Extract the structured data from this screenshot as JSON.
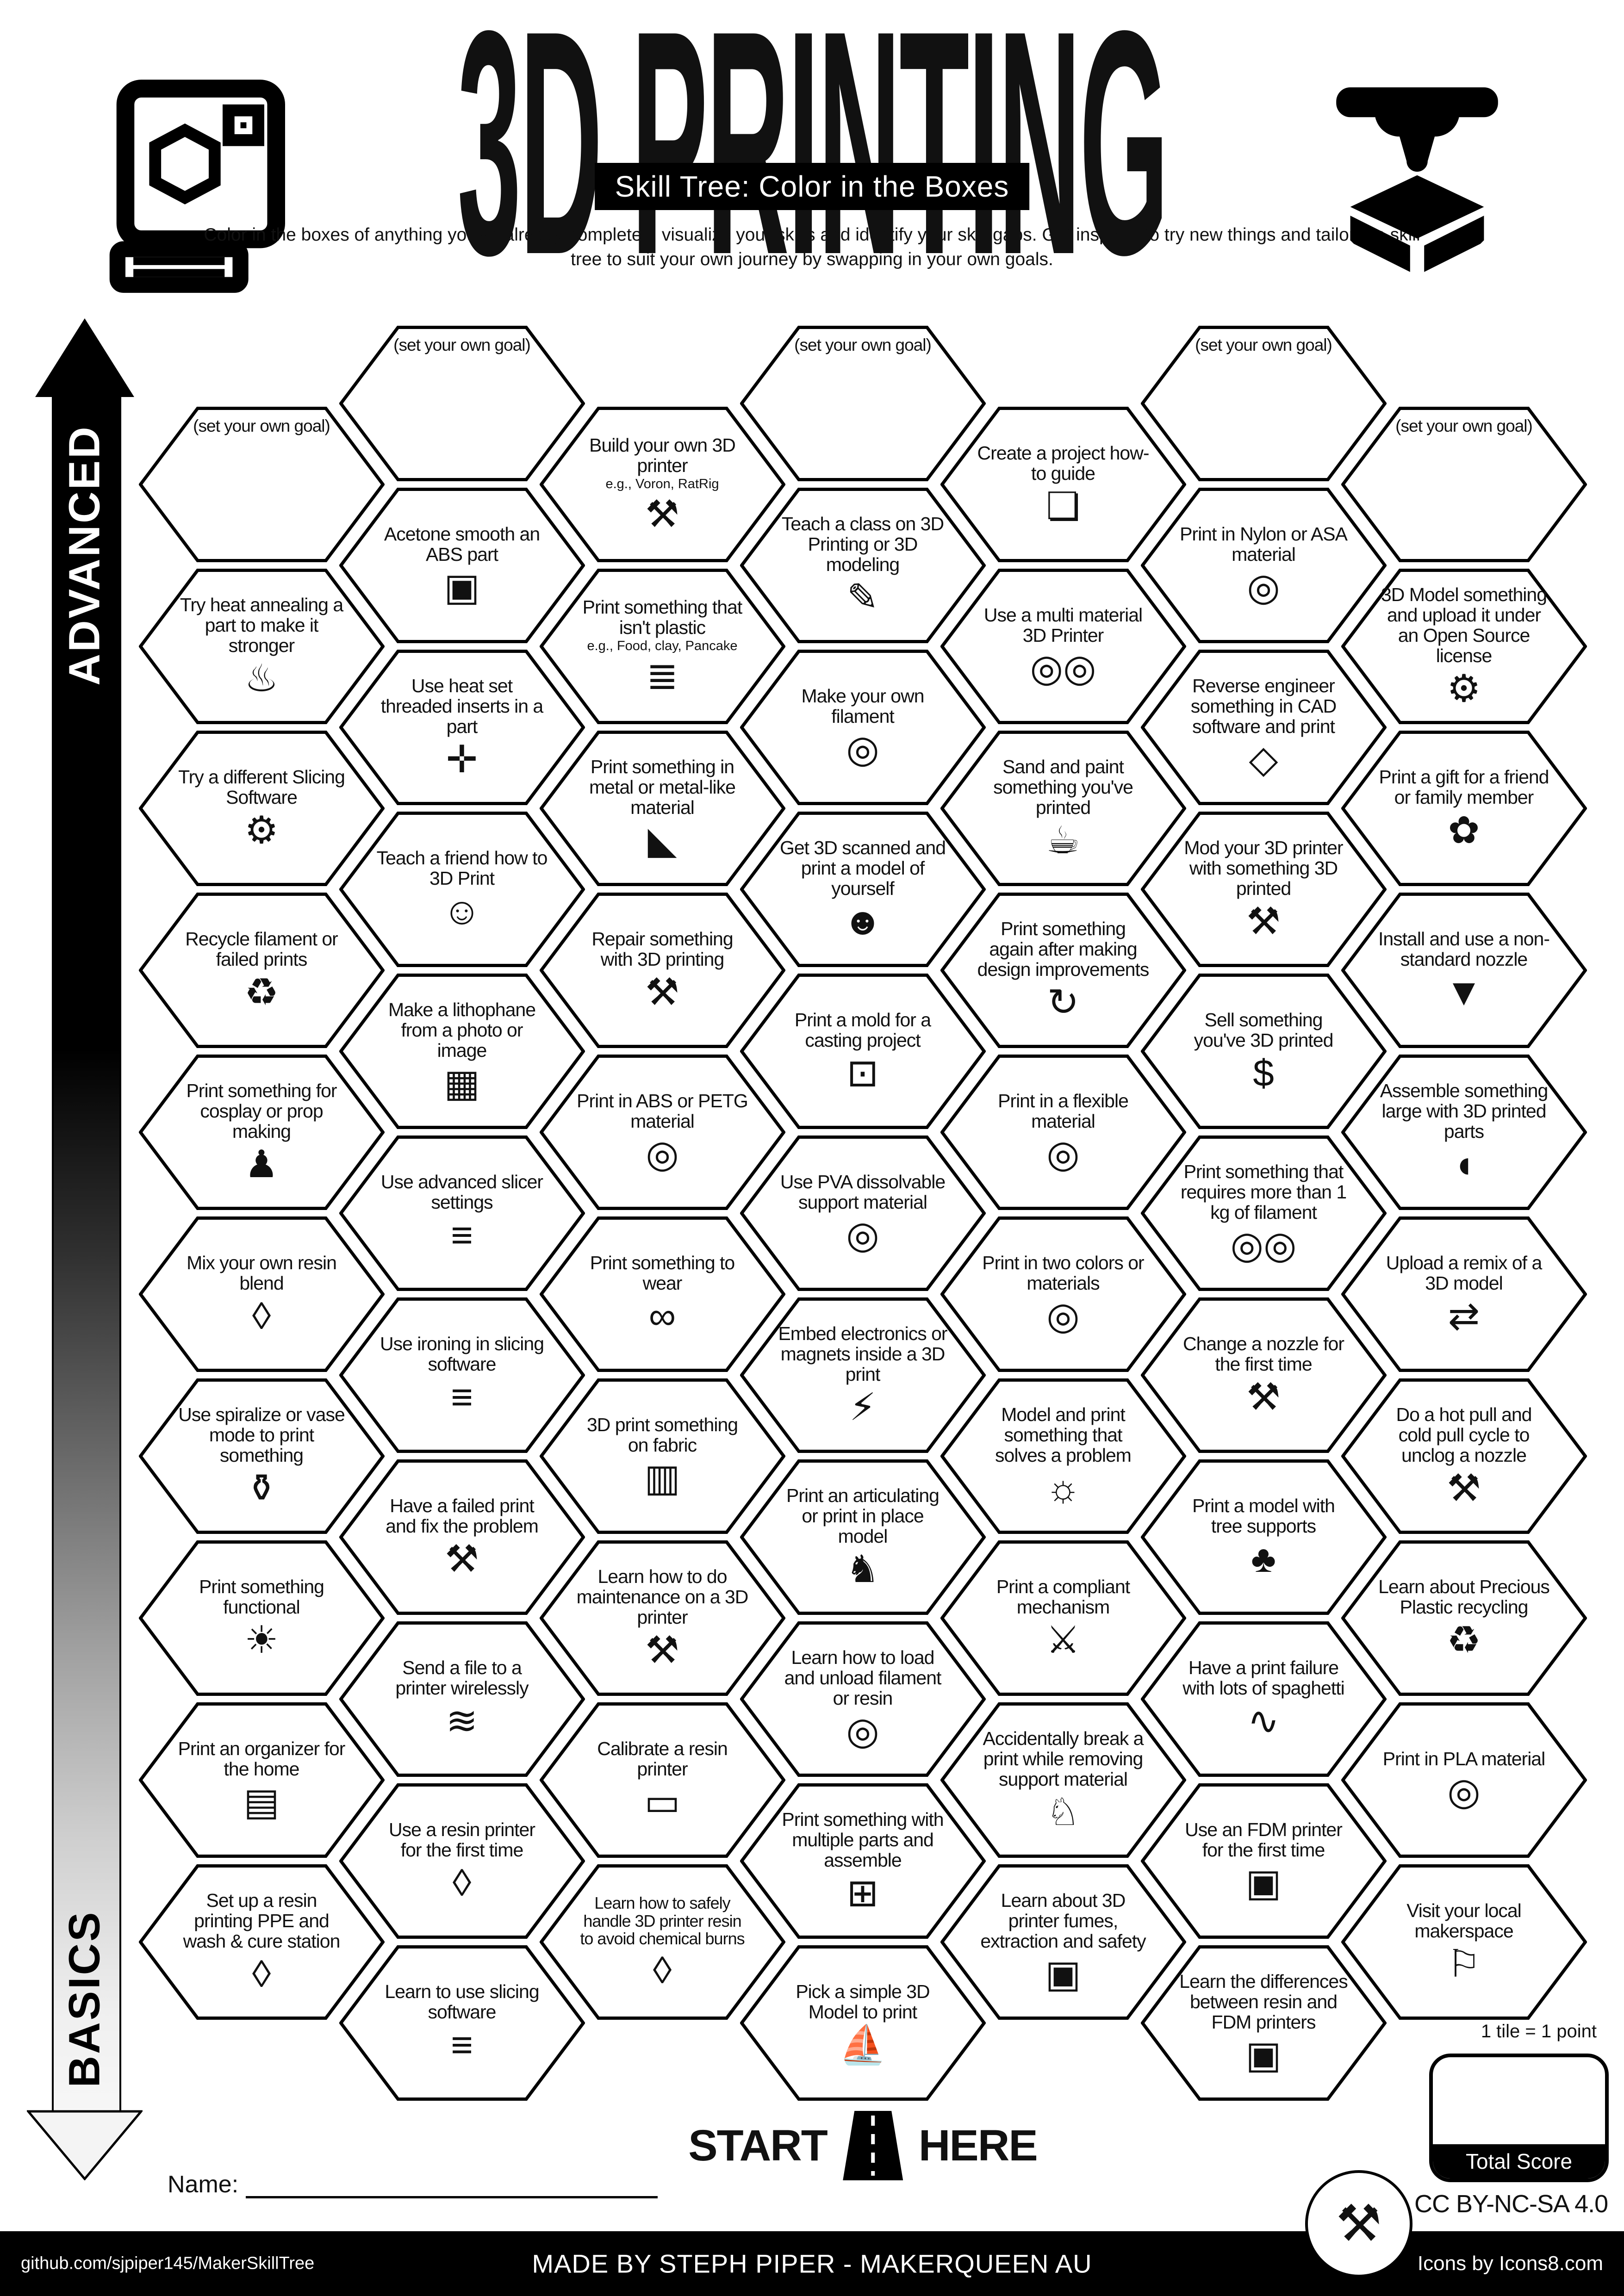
{
  "header": {
    "title": "3D PRINTING",
    "subtitle": "Skill Tree: Color in the Boxes",
    "description": "Color in the boxes of anything you've already completed, visualize your skills and identify your skill gaps.  Get inspired to try new things and tailor the skill tree to suit your own journey by swapping in your own goals."
  },
  "axis": {
    "top_label": "ADVANCED",
    "bottom_label": "BASICS"
  },
  "start_here": {
    "left": "START",
    "right": "HERE"
  },
  "name_label": "Name:",
  "score": {
    "note": "1 tile = 1 point",
    "label": "Total Score"
  },
  "license": "CC BY-NC-SA 4.0",
  "footer": {
    "github": "github.com/sjpiper145/MakerSkillTree",
    "made_by": "MADE BY STEPH PIPER  -  MAKERQUEEN AU",
    "icons_credit": "Icons by Icons8.com"
  },
  "icon_glyphs": {
    "tools-icon": "⚒",
    "filament-spool-icon": "◎",
    "two-spools-icon": "◎◎",
    "thermometer-up-icon": "♨",
    "acetone-box-icon": "▣",
    "threaded-insert-icon": "✛",
    "slicer-layers-icon": "≡",
    "laptop-gear-icon": "⚙",
    "teach-friend-icon": "☺",
    "teach-class-icon": "✎",
    "lithophane-icon": "▦",
    "mannequin-icon": "♟",
    "resin-drop-icon": "◊",
    "vase-icon": "⚱",
    "desk-lamp-icon": "☀",
    "wifi-icon": "≋",
    "organizer-icon": "▤",
    "ruler-icon": "▭",
    "train-icon": "⊞",
    "elephant-icon": "♘",
    "benchy-boat-icon": "⛵",
    "gift-bow-icon": "✿",
    "nozzle-icon": "▼",
    "money-bag-icon": "$",
    "whale-icon": "◖",
    "remix-arrows-icon": "⇄",
    "tree-icon": "♣",
    "recycle-icon": "♻",
    "lightbulb-icon": "☼",
    "compliant-mechanism-icon": "⚔",
    "spaghetti-bowl-icon": "∿",
    "led-icon": "⚡",
    "dragon-icon": "♞",
    "glasses-icon": "∞",
    "fabric-icon": "▥",
    "fdm-printer-icon": "▣",
    "location-pin-icon": "⚐",
    "mold-icon": "⊡",
    "scan-person-icon": "☻",
    "paint-bucket-icon": "☕",
    "redo-circle-icon": "↻",
    "cad-cube-icon": "◇",
    "open-source-gear-icon": "⚙",
    "doc-guide-icon": "❏",
    "anvil-icon": "◣",
    "pancake-stack-icon": "≣",
    "maker-badge-icon": "⚒"
  },
  "skill_tree": {
    "hexes": [
      {
        "id": "goal-1",
        "col": 1,
        "row": 0,
        "label": "(set your own goal)",
        "goal": true
      },
      {
        "id": "heat-annealing",
        "col": 1,
        "row": 1,
        "label": "Try heat annealing a part to make it stronger",
        "icon": "thermometer-up-icon"
      },
      {
        "id": "different-slicer",
        "col": 1,
        "row": 2,
        "label": "Try a different Slicing Software",
        "icon": "laptop-gear-icon"
      },
      {
        "id": "recycle-filament",
        "col": 1,
        "row": 3,
        "label": "Recycle filament or failed prints",
        "icon": "recycle-icon"
      },
      {
        "id": "cosplay",
        "col": 1,
        "row": 4,
        "label": "Print something for cosplay or prop making",
        "icon": "mannequin-icon"
      },
      {
        "id": "mix-resin",
        "col": 1,
        "row": 5,
        "label": "Mix your own resin blend",
        "icon": "resin-drop-icon"
      },
      {
        "id": "spiralize",
        "col": 1,
        "row": 6,
        "label": "Use spiralize or vase mode to print something",
        "icon": "vase-icon"
      },
      {
        "id": "functional",
        "col": 1,
        "row": 7,
        "label": "Print something functional",
        "icon": "desk-lamp-icon"
      },
      {
        "id": "organizer",
        "col": 1,
        "row": 8,
        "label": "Print an organizer for the home",
        "icon": "organizer-icon"
      },
      {
        "id": "resin-ppe",
        "col": 1,
        "row": 9,
        "label": "Set up a resin printing PPE and wash & cure station",
        "icon": "resin-drop-icon"
      },
      {
        "id": "goal-2",
        "col": 2,
        "row": 0,
        "label": "(set your own goal)",
        "goal": true
      },
      {
        "id": "acetone-smooth",
        "col": 2,
        "row": 1,
        "label": "Acetone smooth an ABS part",
        "icon": "acetone-box-icon"
      },
      {
        "id": "heat-set-inserts",
        "col": 2,
        "row": 2,
        "label": "Use heat set threaded inserts in a part",
        "icon": "threaded-insert-icon"
      },
      {
        "id": "teach-friend",
        "col": 2,
        "row": 3,
        "label": "Teach a friend how to 3D Print",
        "icon": "teach-friend-icon"
      },
      {
        "id": "lithophane",
        "col": 2,
        "row": 4,
        "label": "Make a lithophane from a photo or image",
        "icon": "lithophane-icon"
      },
      {
        "id": "advanced-slicer",
        "col": 2,
        "row": 5,
        "label": "Use advanced slicer settings",
        "icon": "slicer-layers-icon"
      },
      {
        "id": "ironing",
        "col": 2,
        "row": 6,
        "label": "Use ironing in slicing software",
        "icon": "slicer-layers-icon"
      },
      {
        "id": "failed-print-fix",
        "col": 2,
        "row": 7,
        "label": "Have a failed print and fix the problem",
        "icon": "tools-icon"
      },
      {
        "id": "send-wireless",
        "col": 2,
        "row": 8,
        "label": "Send a file to a printer wirelessly",
        "icon": "wifi-icon"
      },
      {
        "id": "resin-first-time",
        "col": 2,
        "row": 9,
        "label": "Use a resin printer for the first time",
        "icon": "resin-drop-icon"
      },
      {
        "id": "learn-slicing",
        "col": 2,
        "row": 10,
        "label": "Learn to use slicing software",
        "icon": "slicer-layers-icon"
      },
      {
        "id": "build-printer",
        "col": 3,
        "row": 0,
        "label": "Build your own 3D printer",
        "sub": "e.g., Voron, RatRig",
        "icon": "tools-icon"
      },
      {
        "id": "not-plastic",
        "col": 3,
        "row": 1,
        "label": "Print something that isn't plastic",
        "sub": "e.g., Food, clay, Pancake",
        "icon": "pancake-stack-icon"
      },
      {
        "id": "metal-print",
        "col": 3,
        "row": 2,
        "label": "Print something in metal or metal-like material",
        "icon": "anvil-icon"
      },
      {
        "id": "repair",
        "col": 3,
        "row": 3,
        "label": "Repair something with 3D printing",
        "icon": "tools-icon"
      },
      {
        "id": "abs-petg",
        "col": 3,
        "row": 4,
        "label": "Print in ABS or PETG material",
        "icon": "filament-spool-icon"
      },
      {
        "id": "wearable",
        "col": 3,
        "row": 5,
        "label": "Print something to wear",
        "icon": "glasses-icon"
      },
      {
        "id": "on-fabric",
        "col": 3,
        "row": 6,
        "label": "3D print something on fabric",
        "icon": "fabric-icon"
      },
      {
        "id": "maintenance",
        "col": 3,
        "row": 7,
        "label": "Learn how to do maintenance on a 3D printer",
        "icon": "tools-icon"
      },
      {
        "id": "calibrate-resin",
        "col": 3,
        "row": 8,
        "label": "Calibrate a resin printer",
        "icon": "ruler-icon"
      },
      {
        "id": "resin-safety",
        "col": 3,
        "row": 9,
        "label": "Learn how to safely handle 3D printer resin to avoid chemical burns",
        "icon": "resin-drop-icon"
      },
      {
        "id": "goal-4",
        "col": 4,
        "row": 0,
        "label": "(set your own goal)",
        "goal": true
      },
      {
        "id": "teach-class",
        "col": 4,
        "row": 1,
        "label": "Teach a class on 3D Printing or 3D modeling",
        "icon": "teach-class-icon"
      },
      {
        "id": "make-filament",
        "col": 4,
        "row": 2,
        "label": "Make your own filament",
        "icon": "filament-spool-icon"
      },
      {
        "id": "scan-yourself",
        "col": 4,
        "row": 3,
        "label": "Get 3D scanned and print a model of yourself",
        "icon": "scan-person-icon"
      },
      {
        "id": "casting-mold",
        "col": 4,
        "row": 4,
        "label": "Print a mold for a casting project",
        "icon": "mold-icon"
      },
      {
        "id": "pva-support",
        "col": 4,
        "row": 5,
        "label": "Use PVA dissolvable support material",
        "icon": "filament-spool-icon"
      },
      {
        "id": "embed-electronics",
        "col": 4,
        "row": 6,
        "label": "Embed electronics or magnets inside a 3D print",
        "icon": "led-icon"
      },
      {
        "id": "articulating",
        "col": 4,
        "row": 7,
        "label": "Print an articulating or print in place model",
        "icon": "dragon-icon"
      },
      {
        "id": "load-unload",
        "col": 4,
        "row": 8,
        "label": "Learn how to load and unload filament or resin",
        "icon": "filament-spool-icon"
      },
      {
        "id": "multi-part",
        "col": 4,
        "row": 9,
        "label": "Print something with multiple parts and assemble",
        "icon": "train-icon"
      },
      {
        "id": "simple-model",
        "col": 4,
        "row": 10,
        "label": "Pick a simple 3D Model to print",
        "icon": "benchy-boat-icon"
      },
      {
        "id": "howto-guide",
        "col": 5,
        "row": 0,
        "label": "Create a project how-to guide",
        "icon": "doc-guide-icon"
      },
      {
        "id": "multi-material",
        "col": 5,
        "row": 1,
        "label": "Use a multi material 3D Printer",
        "icon": "two-spools-icon"
      },
      {
        "id": "sand-paint",
        "col": 5,
        "row": 2,
        "label": "Sand and paint something you've printed",
        "icon": "paint-bucket-icon"
      },
      {
        "id": "design-improve",
        "col": 5,
        "row": 3,
        "label": "Print something again after making design improvements",
        "icon": "redo-circle-icon"
      },
      {
        "id": "flexible",
        "col": 5,
        "row": 4,
        "label": "Print in a flexible material",
        "icon": "filament-spool-icon"
      },
      {
        "id": "two-colors",
        "col": 5,
        "row": 5,
        "label": "Print in two colors or materials",
        "icon": "filament-spool-icon"
      },
      {
        "id": "solve-problem",
        "col": 5,
        "row": 6,
        "label": "Model and print something that solves a problem",
        "icon": "lightbulb-icon"
      },
      {
        "id": "compliant",
        "col": 5,
        "row": 7,
        "label": "Print a compliant mechanism",
        "icon": "compliant-mechanism-icon"
      },
      {
        "id": "break-print",
        "col": 5,
        "row": 8,
        "label": "Accidentally break a print while removing support material",
        "icon": "elephant-icon"
      },
      {
        "id": "fumes-safety",
        "col": 5,
        "row": 9,
        "label": "Learn about 3D printer fumes, extraction and safety",
        "icon": "fdm-printer-icon"
      },
      {
        "id": "goal-6",
        "col": 6,
        "row": 0,
        "label": "(set your own goal)",
        "goal": true
      },
      {
        "id": "nylon-asa",
        "col": 6,
        "row": 1,
        "label": "Print in Nylon or ASA material",
        "icon": "filament-spool-icon"
      },
      {
        "id": "reverse-engineer",
        "col": 6,
        "row": 2,
        "label": "Reverse engineer something in CAD software and print",
        "icon": "cad-cube-icon"
      },
      {
        "id": "mod-printer",
        "col": 6,
        "row": 3,
        "label": "Mod your 3D printer with something 3D printed",
        "icon": "tools-icon"
      },
      {
        "id": "sell-print",
        "col": 6,
        "row": 4,
        "label": "Sell something you've 3D printed",
        "icon": "money-bag-icon"
      },
      {
        "id": "one-kg",
        "col": 6,
        "row": 5,
        "label": "Print something that requires more than 1 kg of filament",
        "icon": "two-spools-icon"
      },
      {
        "id": "change-nozzle",
        "col": 6,
        "row": 6,
        "label": "Change a nozzle for the first time",
        "icon": "tools-icon"
      },
      {
        "id": "tree-supports",
        "col": 6,
        "row": 7,
        "label": "Print a model with tree supports",
        "icon": "tree-icon"
      },
      {
        "id": "spaghetti",
        "col": 6,
        "row": 8,
        "label": "Have a print failure with lots of spaghetti",
        "icon": "spaghetti-bowl-icon"
      },
      {
        "id": "fdm-first-time",
        "col": 6,
        "row": 9,
        "label": "Use an FDM printer for the first time",
        "icon": "fdm-printer-icon"
      },
      {
        "id": "resin-vs-fdm",
        "col": 6,
        "row": 10,
        "label": "Learn the differences between resin and FDM printers",
        "icon": "fdm-printer-icon"
      },
      {
        "id": "goal-7",
        "col": 7,
        "row": 0,
        "label": "(set your own goal)",
        "goal": true
      },
      {
        "id": "open-source",
        "col": 7,
        "row": 1,
        "label": "3D Model something and upload it under an Open Source license",
        "icon": "open-source-gear-icon"
      },
      {
        "id": "gift",
        "col": 7,
        "row": 2,
        "label": "Print a gift for a friend or family member",
        "icon": "gift-bow-icon"
      },
      {
        "id": "nonstandard-nozzle",
        "col": 7,
        "row": 3,
        "label": "Install and use a non-standard nozzle",
        "icon": "nozzle-icon"
      },
      {
        "id": "assemble-large",
        "col": 7,
        "row": 4,
        "label": "Assemble something large with 3D printed parts",
        "icon": "whale-icon"
      },
      {
        "id": "remix",
        "col": 7,
        "row": 5,
        "label": "Upload a remix of a 3D model",
        "icon": "remix-arrows-icon"
      },
      {
        "id": "hot-cold-pull",
        "col": 7,
        "row": 6,
        "label": "Do a hot pull and cold pull cycle to unclog a nozzle",
        "icon": "tools-icon"
      },
      {
        "id": "precious-plastic",
        "col": 7,
        "row": 7,
        "label": "Learn about Precious Plastic recycling",
        "icon": "recycle-icon"
      },
      {
        "id": "pla",
        "col": 7,
        "row": 8,
        "label": "Print in PLA material",
        "icon": "filament-spool-icon"
      },
      {
        "id": "makerspace",
        "col": 7,
        "row": 9,
        "label": "Visit your local makerspace",
        "icon": "location-pin-icon"
      }
    ]
  }
}
